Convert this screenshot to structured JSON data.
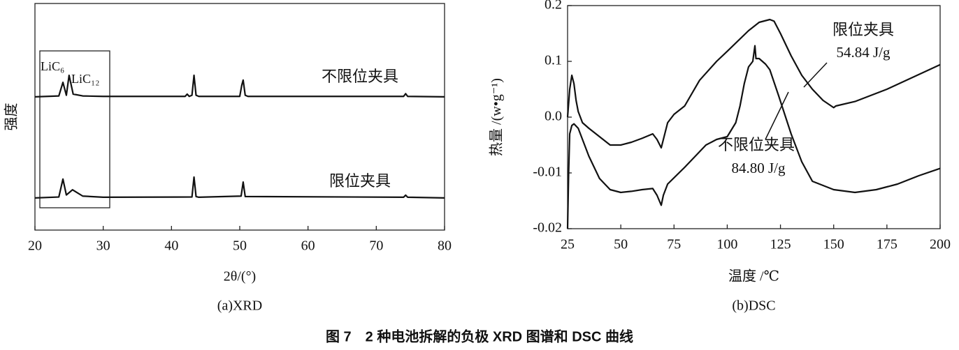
{
  "figure_title": "图 7　2 种电池拆解的负极 XRD 图谱和 DSC 曲线",
  "chart_data": [
    {
      "type": "line",
      "xlabel": "2θ/(°)",
      "ylabel": "强度",
      "caption": "(a)XRD",
      "xlim": [
        20,
        80
      ],
      "xticks": [
        20,
        30,
        40,
        50,
        60,
        70,
        80
      ],
      "ylim": [
        0,
        100
      ],
      "annotations": [
        {
          "text": "LiC₆"
        },
        {
          "text": "LiC₁₂"
        }
      ],
      "series": [
        {
          "name": "不限位夹具",
          "color": "#111111",
          "x": [
            20,
            23.5,
            24.1,
            24.6,
            25.0,
            25.6,
            27,
            30,
            42,
            42.3,
            42.6,
            43,
            43.3,
            43.6,
            44,
            50,
            50.3,
            50.5,
            50.8,
            51.2,
            74,
            74.3,
            74.6,
            80
          ],
          "values": [
            58.8,
            59.2,
            65.2,
            59.5,
            68.3,
            60,
            59.2,
            59,
            59,
            60,
            59,
            59.5,
            68.3,
            59.5,
            59,
            59,
            64,
            66.2,
            59.5,
            59,
            59,
            60.2,
            59,
            58.8
          ]
        },
        {
          "name": "限位夹具",
          "color": "#111111",
          "x": [
            20,
            23.5,
            24.1,
            24.6,
            25.0,
            25.5,
            26.2,
            27,
            30,
            43,
            43.3,
            43.6,
            44,
            50.2,
            50.5,
            50.8,
            74,
            74.3,
            74.6,
            80
          ],
          "values": [
            14.2,
            14.6,
            22.5,
            15.5,
            16.5,
            17.8,
            16.5,
            15,
            14.5,
            14.6,
            23.4,
            14.8,
            14.5,
            15,
            21.2,
            14.8,
            14.5,
            15.4,
            14.5,
            14.2
          ]
        }
      ]
    },
    {
      "type": "line",
      "xlabel": "温度 /℃",
      "ylabel": "热量 /(w•g⁻¹)",
      "caption": "(b)DSC",
      "xlim": [
        25,
        200
      ],
      "xticks": [
        25,
        50,
        75,
        100,
        125,
        150,
        175,
        200
      ],
      "ylim": [
        -0.02,
        0.2
      ],
      "yticks": [
        0.2,
        0.1,
        {
          "value": 0,
          "label": "0.0"
        },
        -0.01,
        -0.02
      ],
      "annotations": [
        {
          "text": "54.84 J/g"
        },
        {
          "text": "84.80 J/g"
        }
      ],
      "series": [
        {
          "name": "限位夹具",
          "color": "#111111",
          "x": [
            25,
            26,
            27,
            28,
            29,
            30,
            32,
            35,
            40,
            45,
            50,
            55,
            60,
            65,
            67,
            69,
            70,
            72,
            75,
            80,
            87,
            95,
            100,
            110,
            115,
            120,
            122,
            125,
            130,
            135,
            140,
            145,
            150,
            151,
            160,
            175,
            200
          ],
          "values": [
            0,
            0.05,
            0.075,
            0.06,
            0.03,
            0.01,
            -0.001,
            -0.002,
            -0.0035,
            -0.005,
            -0.005,
            -0.0045,
            -0.0038,
            -0.003,
            -0.004,
            -0.0055,
            -0.004,
            -0.001,
            0.005,
            0.02,
            0.066,
            0.1,
            0.118,
            0.155,
            0.17,
            0.175,
            0.172,
            0.15,
            0.11,
            0.075,
            0.05,
            0.03,
            0.017,
            0.02,
            0.028,
            0.05,
            0.094
          ]
        },
        {
          "name": "不限位夹具",
          "color": "#111111",
          "x": [
            25,
            25.5,
            26,
            27,
            28,
            30,
            32,
            35,
            40,
            45,
            50,
            55,
            60,
            65,
            67,
            69,
            70,
            72,
            80,
            90,
            95,
            100,
            104,
            106,
            108,
            110,
            112,
            113,
            113.5,
            115,
            118,
            120,
            124,
            127,
            130,
            135,
            140,
            150,
            160,
            170,
            180,
            190,
            200
          ],
          "values": [
            -0.02,
            -0.01,
            -0.003,
            -0.0015,
            -0.0012,
            -0.002,
            -0.004,
            -0.007,
            -0.011,
            -0.013,
            -0.0135,
            -0.0133,
            -0.013,
            -0.0128,
            -0.014,
            -0.0158,
            -0.014,
            -0.012,
            -0.009,
            -0.005,
            -0.004,
            -0.0035,
            -0.001,
            0.02,
            0.06,
            0.09,
            0.1,
            0.128,
            0.105,
            0.105,
            0.095,
            0.085,
            0.04,
            0.005,
            -0.003,
            -0.008,
            -0.0115,
            -0.013,
            -0.0135,
            -0.013,
            -0.012,
            -0.0105,
            -0.0092
          ]
        }
      ]
    }
  ]
}
